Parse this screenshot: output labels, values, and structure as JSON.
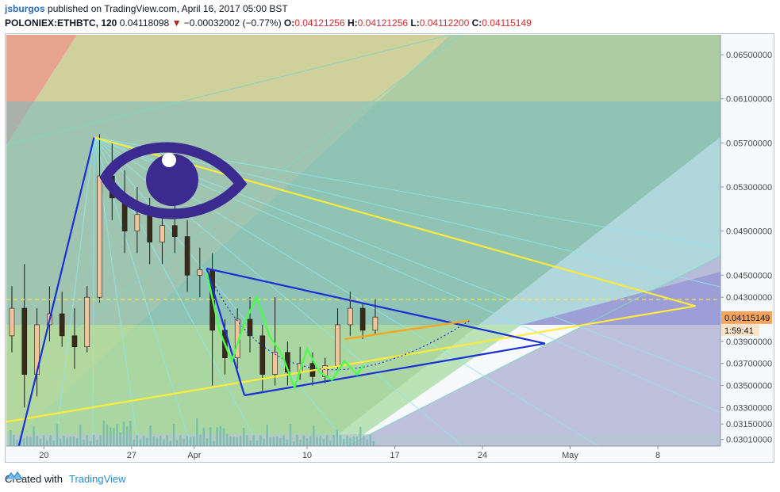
{
  "header": {
    "author": "jsburgos",
    "published_text": "published on TradingView.com, April 16, 2017 05:00 BST",
    "symbol": "POLONIEX:ETHBTC, 120",
    "last": "0.04118098",
    "change_arrow": "▼",
    "change": "−0.00032002 (−0.77%)",
    "o_label": "O:",
    "o_value": "0.04121256",
    "h_label": "H:",
    "h_value": "0.04121256",
    "l_label": "L:",
    "l_value": "0.04112200",
    "c_label": "C:",
    "c_value": "0.04115149"
  },
  "footer": {
    "created_with": "Created with",
    "brand": "TradingView",
    "icon": "tradingview-cloud-icon"
  },
  "colors": {
    "trend_yellow": "#ffeb3b",
    "trend_blue": "#1a2fd6",
    "wave_green": "#4cff4c",
    "target_orange": "#f5a623",
    "eye": "#3b2a8f",
    "price_tag": "#f4a460",
    "countdown_tag": "#fde3c8"
  },
  "chart_data": {
    "type": "candlestick",
    "pair": "ETHBTC",
    "exchange": "POLONIEX",
    "interval": "120",
    "y_axis": {
      "range": [
        0.0295,
        0.0668
      ],
      "ticks": [
        "0.06500000",
        "0.06100000",
        "0.05700000",
        "0.05300000",
        "0.04900000",
        "0.04500000",
        "0.04300000",
        "0.03900000",
        "0.03700000",
        "0.03500000",
        "0.03300000",
        "0.03150000",
        "0.03010000"
      ]
    },
    "x_axis": {
      "range": [
        "2017-03-17",
        "2017-05-13"
      ],
      "ticks": [
        {
          "label": "20",
          "date": "2017-03-20"
        },
        {
          "label": "27",
          "date": "2017-03-27"
        },
        {
          "label": "Apr",
          "date": "2017-04-01"
        },
        {
          "label": "10",
          "date": "2017-04-10"
        },
        {
          "label": "17",
          "date": "2017-04-17"
        },
        {
          "label": "24",
          "date": "2017-04-24"
        },
        {
          "label": "May",
          "date": "2017-05-01"
        },
        {
          "label": "8",
          "date": "2017-05-08"
        }
      ]
    },
    "price_tag": "0.04115149",
    "countdown": "1:59:41",
    "dashed_level": 0.0428,
    "trendlines": {
      "yellow_upper": [
        [
          "2017-03-24",
          0.0575
        ],
        [
          "2017-05-11",
          0.0422
        ]
      ],
      "yellow_lower": [
        [
          "2017-03-17",
          0.0317
        ],
        [
          "2017-05-11",
          0.0422
        ]
      ],
      "blue_upper": [
        [
          "2017-04-02",
          0.0456
        ],
        [
          "2017-04-29",
          0.0388
        ]
      ],
      "blue_lower": [
        [
          "2017-04-05",
          0.0341
        ],
        [
          "2017-04-29",
          0.0388
        ]
      ],
      "blue_left": [
        [
          "2017-03-18",
          0.0295
        ],
        [
          "2017-03-24",
          0.0575
        ]
      ],
      "blue_drop": [
        [
          "2017-04-02",
          0.0456
        ],
        [
          "2017-04-05",
          0.0341
        ]
      ],
      "orange_target": [
        [
          "2017-04-13",
          0.0392
        ],
        [
          "2017-04-23",
          0.0409
        ]
      ]
    },
    "wave_path": [
      [
        "2017-04-02",
        0.0452
      ],
      [
        "2017-04-03",
        0.04
      ],
      [
        "2017-04-04",
        0.0372
      ],
      [
        "2017-04-05",
        0.0407
      ],
      [
        "2017-04-06",
        0.043
      ],
      [
        "2017-04-07",
        0.0395
      ],
      [
        "2017-04-08",
        0.0378
      ],
      [
        "2017-04-09",
        0.0348
      ],
      [
        "2017-04-10",
        0.0383
      ],
      [
        "2017-04-11",
        0.0362
      ],
      [
        "2017-04-12",
        0.0355
      ],
      [
        "2017-04-13",
        0.0372
      ],
      [
        "2017-04-14",
        0.036
      ],
      [
        "2017-04-14T12:00",
        0.0368
      ]
    ],
    "candles": [
      [
        "2017-03-17",
        0.0395,
        0.044,
        0.038,
        0.042
      ],
      [
        "2017-03-18",
        0.042,
        0.046,
        0.033,
        0.036
      ],
      [
        "2017-03-19",
        0.036,
        0.042,
        0.034,
        0.0405
      ],
      [
        "2017-03-20",
        0.0405,
        0.044,
        0.039,
        0.0415
      ],
      [
        "2017-03-21",
        0.0415,
        0.0435,
        0.0385,
        0.0395
      ],
      [
        "2017-03-22",
        0.0395,
        0.042,
        0.0365,
        0.0385
      ],
      [
        "2017-03-23",
        0.0385,
        0.044,
        0.038,
        0.043
      ],
      [
        "2017-03-24",
        0.043,
        0.0578,
        0.0425,
        0.054
      ],
      [
        "2017-03-25",
        0.054,
        0.057,
        0.05,
        0.052
      ],
      [
        "2017-03-26",
        0.052,
        0.0545,
        0.047,
        0.049
      ],
      [
        "2017-03-27",
        0.049,
        0.053,
        0.047,
        0.0505
      ],
      [
        "2017-03-28",
        0.0505,
        0.052,
        0.046,
        0.048
      ],
      [
        "2017-03-29",
        0.048,
        0.051,
        0.046,
        0.0495
      ],
      [
        "2017-03-30",
        0.0495,
        0.052,
        0.047,
        0.0485
      ],
      [
        "2017-03-31",
        0.0485,
        0.05,
        0.0435,
        0.045
      ],
      [
        "2017-04-01",
        0.045,
        0.0475,
        0.043,
        0.0455
      ],
      [
        "2017-04-02",
        0.0455,
        0.047,
        0.035,
        0.04
      ],
      [
        "2017-04-03",
        0.04,
        0.041,
        0.036,
        0.0375
      ],
      [
        "2017-04-04",
        0.0375,
        0.042,
        0.0365,
        0.041
      ],
      [
        "2017-04-05",
        0.041,
        0.043,
        0.038,
        0.0395
      ],
      [
        "2017-04-06",
        0.0395,
        0.0405,
        0.0345,
        0.036
      ],
      [
        "2017-04-07",
        0.036,
        0.043,
        0.035,
        0.038
      ],
      [
        "2017-04-08",
        0.038,
        0.039,
        0.035,
        0.0362
      ],
      [
        "2017-04-09",
        0.0362,
        0.0385,
        0.0355,
        0.037
      ],
      [
        "2017-04-10",
        0.037,
        0.038,
        0.035,
        0.0358
      ],
      [
        "2017-04-11",
        0.0358,
        0.0375,
        0.0352,
        0.0368
      ],
      [
        "2017-04-12",
        0.0368,
        0.042,
        0.0365,
        0.0405
      ],
      [
        "2017-04-13",
        0.0405,
        0.0435,
        0.0395,
        0.042
      ],
      [
        "2017-04-14",
        0.042,
        0.0425,
        0.0392,
        0.04
      ],
      [
        "2017-04-15",
        0.04,
        0.0428,
        0.0396,
        0.0412
      ]
    ]
  }
}
